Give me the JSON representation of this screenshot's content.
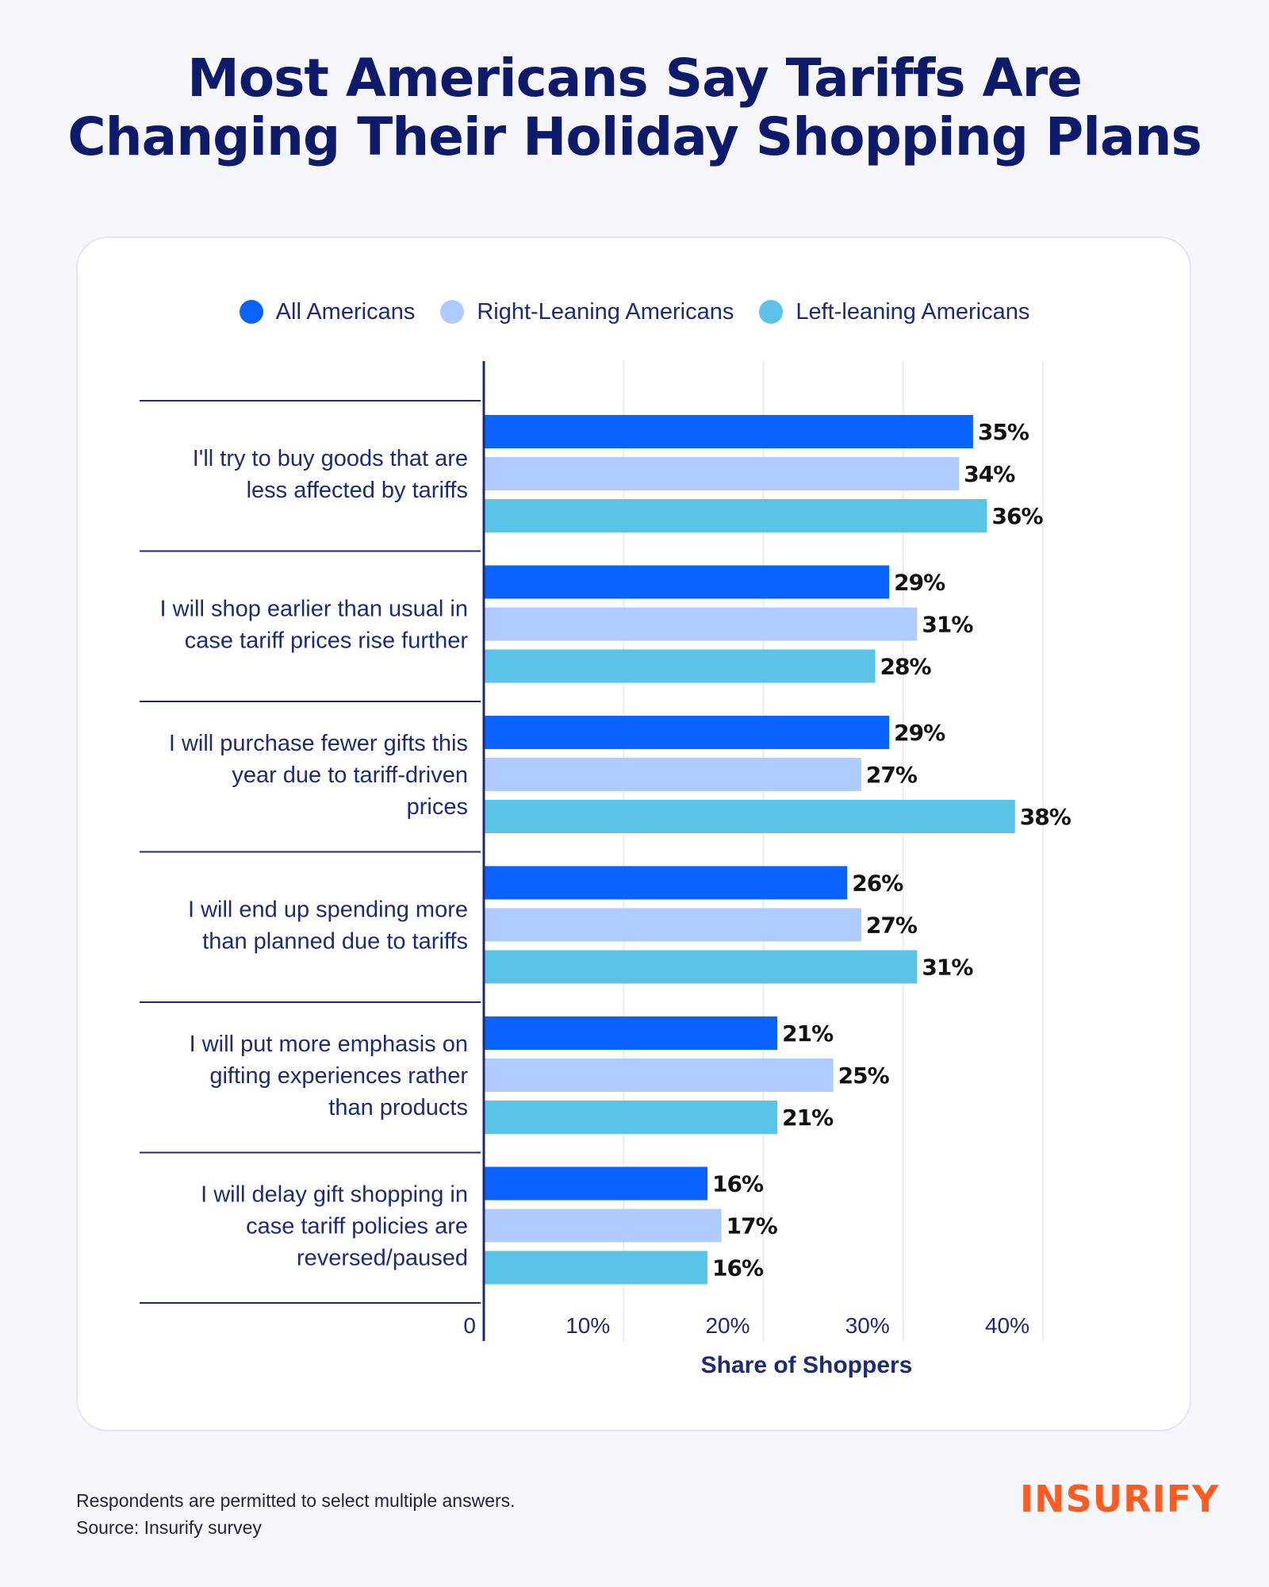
{
  "title": {
    "line1": "Most Americans Say Tariffs Are",
    "line2": "Changing Their Holiday Shopping Plans"
  },
  "colors": {
    "title": "#0f1a6b",
    "axis": "#1c2a78",
    "grid": "#e6e8ef",
    "value_label": "#111111"
  },
  "chart_data": {
    "type": "bar",
    "orientation": "horizontal",
    "categories": [
      [
        "I'll try to buy goods that are",
        "less affected by tariffs"
      ],
      [
        "I will shop earlier than usual in",
        "case tariff prices rise further"
      ],
      [
        "I will purchase fewer gifts this",
        "year due to tariff-driven",
        "prices"
      ],
      [
        "I will end up spending more",
        "than planned due to tariffs"
      ],
      [
        "I will put more emphasis on",
        "gifting experiences rather",
        "than products"
      ],
      [
        "I will delay gift shopping in",
        "case tariff policies are",
        "reversed/paused"
      ]
    ],
    "series": [
      {
        "name": "All Americans",
        "color": "#0a62ff",
        "values": [
          35,
          29,
          29,
          26,
          21,
          16
        ]
      },
      {
        "name": "Right-Leaning Americans",
        "color": "#b0cbff",
        "values": [
          34,
          31,
          27,
          27,
          25,
          17
        ]
      },
      {
        "name": "Left-leaning Americans",
        "color": "#5bc4e6",
        "values": [
          36,
          28,
          38,
          31,
          21,
          16
        ]
      }
    ],
    "value_suffix": "%",
    "xlim": [
      0,
      40
    ],
    "xticks": [
      "0",
      "10%",
      "20%",
      "30%",
      "40%"
    ],
    "xlabel": "Share of Shoppers",
    "grid": true,
    "legend_position": "top-center"
  },
  "footnote": {
    "line1": "Respondents are permitted to select multiple answers.",
    "line2": "Source: Insurify survey"
  },
  "logo": "INSURIFY"
}
